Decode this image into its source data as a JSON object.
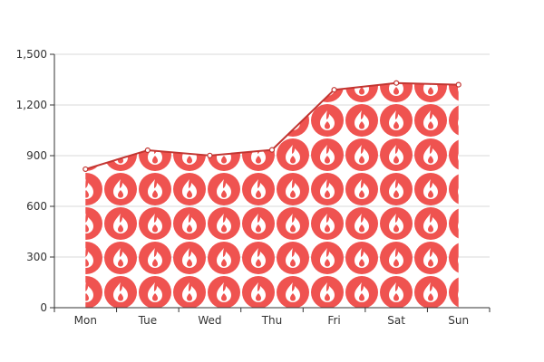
{
  "chart_data": {
    "type": "area",
    "categories": [
      "Mon",
      "Tue",
      "Wed",
      "Thu",
      "Fri",
      "Sat",
      "Sun"
    ],
    "values": [
      820,
      932,
      901,
      934,
      1290,
      1330,
      1320
    ],
    "y_ticks": [
      "0",
      "300",
      "600",
      "900",
      "1,200",
      "1,500"
    ],
    "ylim": [
      0,
      1500
    ],
    "grid": "horizontal",
    "fill_pattern": "fire-icon",
    "colors": {
      "line": "#c23531",
      "pattern_disc": "#ef5350",
      "pattern_flame": "#ffffff",
      "grid": "#d9d9d9",
      "axis": "#333333",
      "text": "#333333"
    }
  }
}
